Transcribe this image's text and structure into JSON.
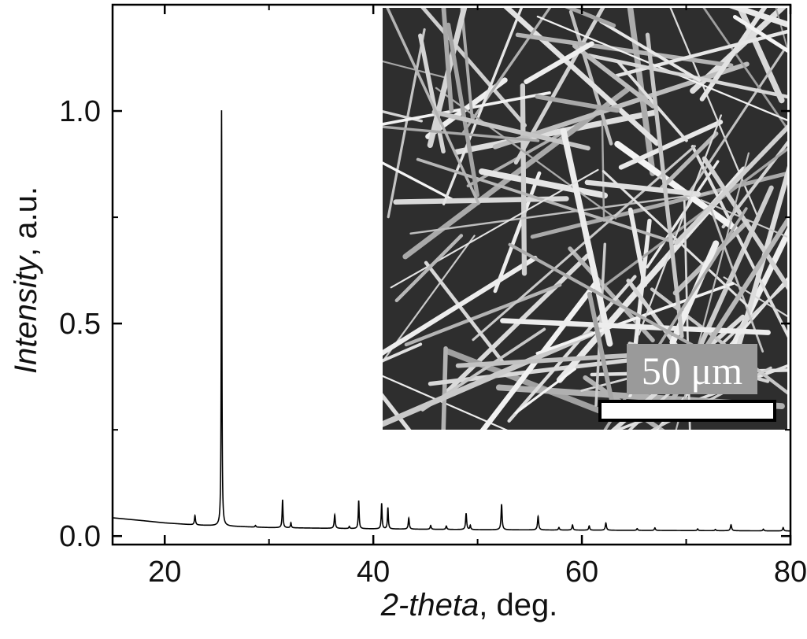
{
  "chart_data": {
    "type": "line",
    "xlabel_italic": "2-theta",
    "xlabel_rest": ", deg.",
    "ylabel_italic": "Intensity",
    "ylabel_rest": ", a.u.",
    "xlim": [
      15,
      80
    ],
    "ylim": [
      -0.02,
      1.25
    ],
    "x_ticks": [
      20,
      40,
      60,
      80
    ],
    "x_tick_labels": [
      "20",
      "40",
      "60",
      "80"
    ],
    "x_minor_ticks": [
      30,
      50,
      70
    ],
    "y_ticks": [
      0.0,
      0.5,
      1.0
    ],
    "y_tick_labels": [
      "0.0",
      "0.5",
      "1.0"
    ],
    "grid": false,
    "baseline": {
      "x": [
        15,
        18,
        20,
        23,
        25,
        30,
        40,
        50,
        60,
        70,
        80
      ],
      "y": [
        0.043,
        0.036,
        0.031,
        0.026,
        0.024,
        0.02,
        0.017,
        0.015,
        0.014,
        0.013,
        0.012
      ]
    },
    "peaks": [
      {
        "x": 22.9,
        "height": 0.022,
        "width": 0.12
      },
      {
        "x": 25.45,
        "height": 0.978,
        "width": 0.07
      },
      {
        "x": 28.7,
        "height": 0.004,
        "width": 0.1
      },
      {
        "x": 31.3,
        "height": 0.066,
        "width": 0.1
      },
      {
        "x": 32.1,
        "height": 0.012,
        "width": 0.1
      },
      {
        "x": 36.3,
        "height": 0.032,
        "width": 0.12
      },
      {
        "x": 37.7,
        "height": 0.005,
        "width": 0.1
      },
      {
        "x": 38.6,
        "height": 0.066,
        "width": 0.1
      },
      {
        "x": 40.8,
        "height": 0.06,
        "width": 0.1
      },
      {
        "x": 41.4,
        "height": 0.05,
        "width": 0.1
      },
      {
        "x": 43.4,
        "height": 0.026,
        "width": 0.12
      },
      {
        "x": 45.5,
        "height": 0.009,
        "width": 0.12
      },
      {
        "x": 47.0,
        "height": 0.008,
        "width": 0.12
      },
      {
        "x": 48.9,
        "height": 0.038,
        "width": 0.12
      },
      {
        "x": 49.3,
        "height": 0.01,
        "width": 0.1
      },
      {
        "x": 52.3,
        "height": 0.06,
        "width": 0.12
      },
      {
        "x": 55.8,
        "height": 0.032,
        "width": 0.13
      },
      {
        "x": 57.8,
        "height": 0.006,
        "width": 0.12
      },
      {
        "x": 59.1,
        "height": 0.012,
        "width": 0.12
      },
      {
        "x": 60.7,
        "height": 0.01,
        "width": 0.12
      },
      {
        "x": 62.3,
        "height": 0.017,
        "width": 0.13
      },
      {
        "x": 65.3,
        "height": 0.004,
        "width": 0.12
      },
      {
        "x": 67.0,
        "height": 0.006,
        "width": 0.12
      },
      {
        "x": 71.1,
        "height": 0.004,
        "width": 0.12
      },
      {
        "x": 72.8,
        "height": 0.003,
        "width": 0.12
      },
      {
        "x": 74.3,
        "height": 0.014,
        "width": 0.14
      },
      {
        "x": 77.4,
        "height": 0.004,
        "width": 0.12
      },
      {
        "x": 79.3,
        "height": 0.008,
        "width": 0.12
      }
    ]
  },
  "inset": {
    "type": "sem-micrograph",
    "scale_bar_label": "50 μm"
  }
}
